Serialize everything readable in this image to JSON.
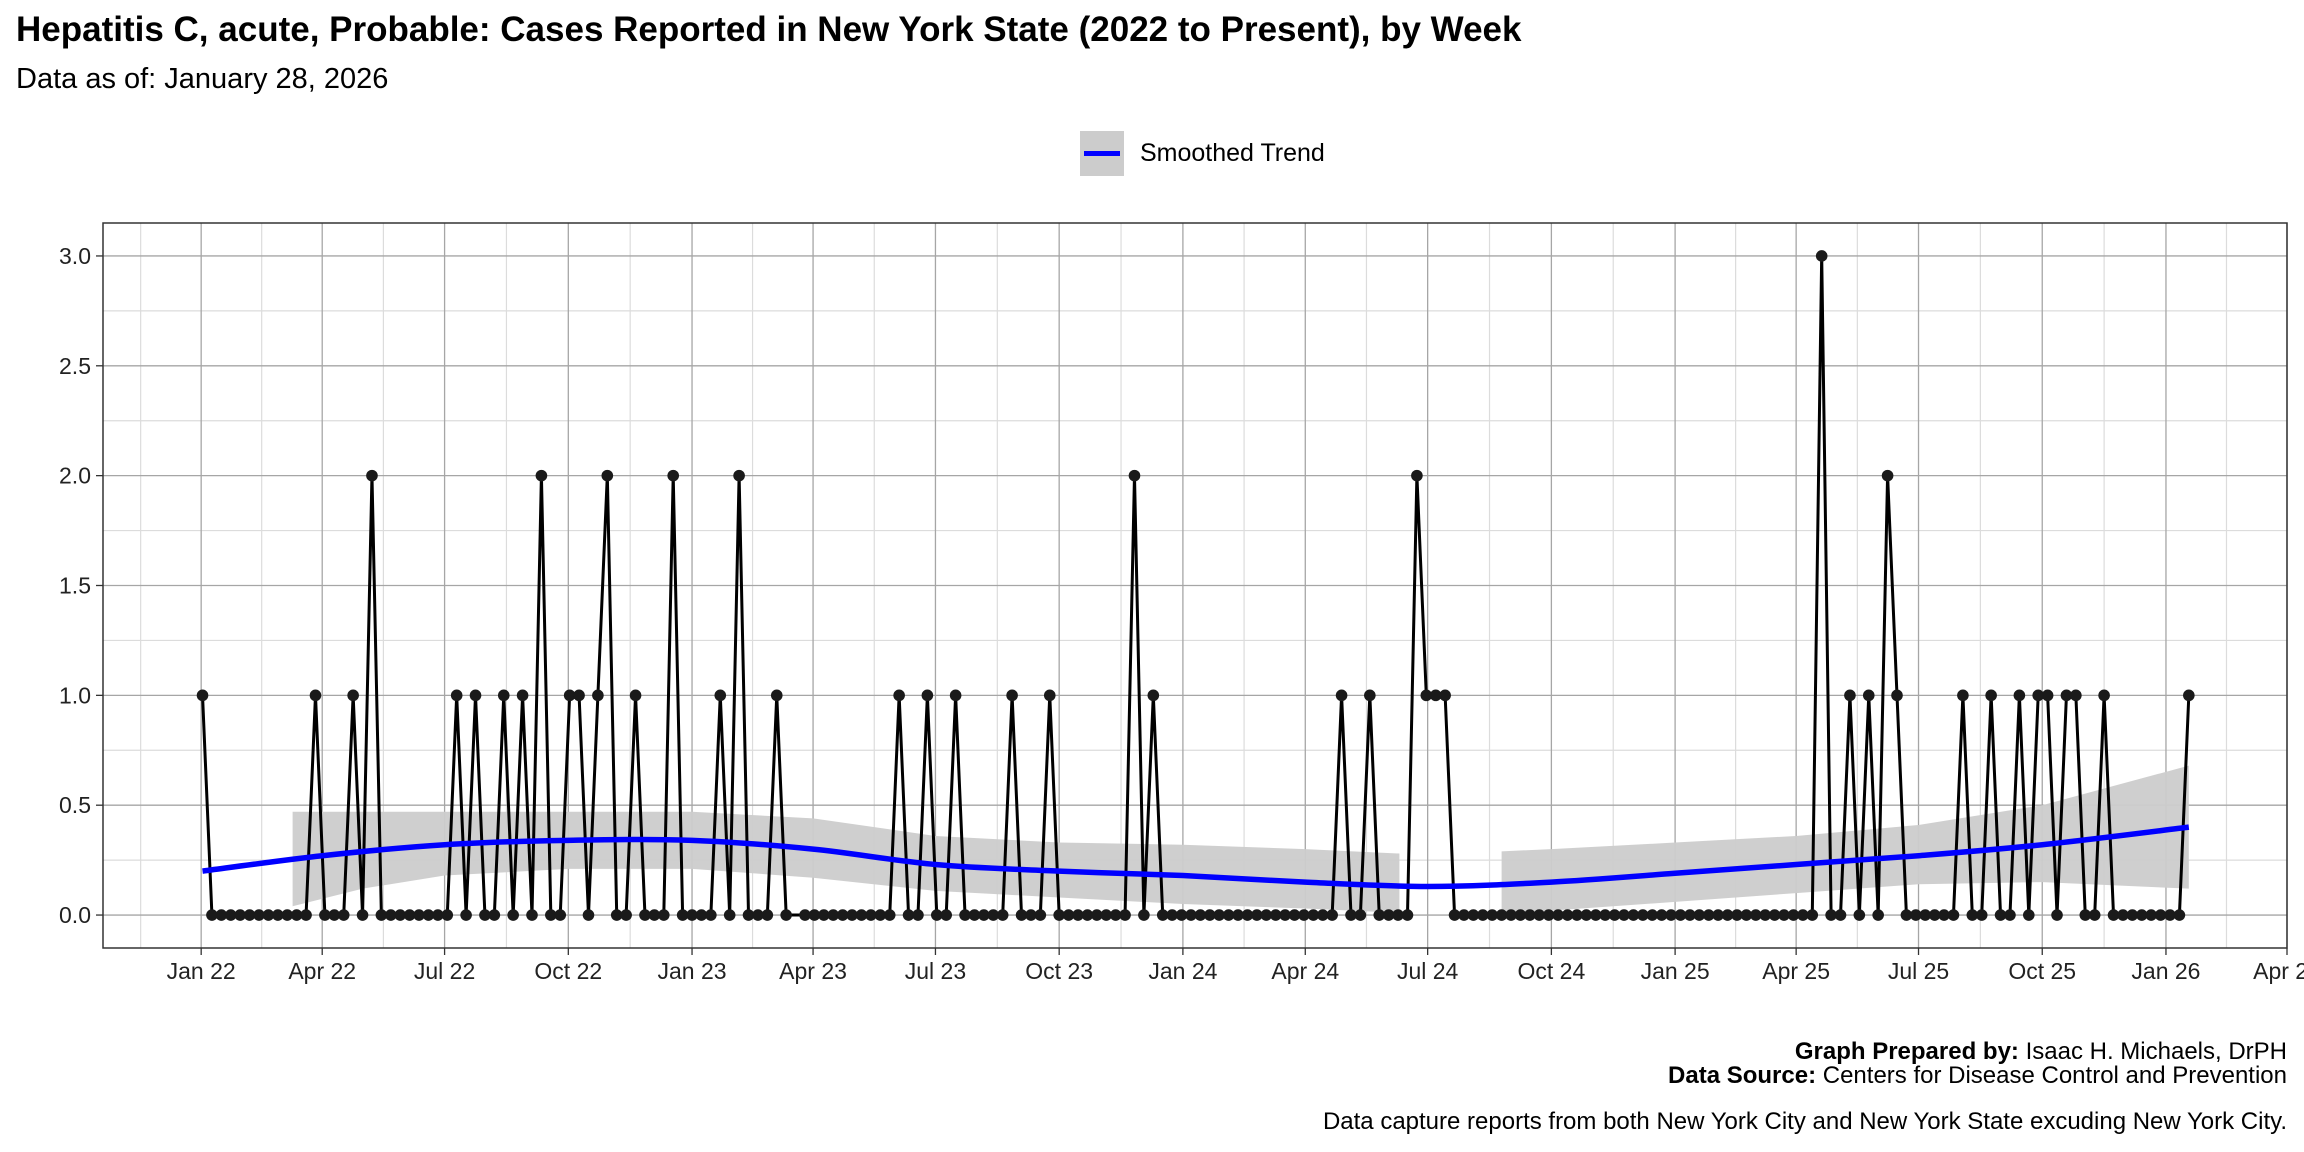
{
  "title": "Hepatitis C, acute, Probable: Cases Reported in New York State (2022 to Present), by Week",
  "subtitle": "Data as of: January 28, 2026",
  "legend": {
    "label": "Smoothed Trend",
    "color": "#0000ff",
    "ribbon_color": "#cccccc"
  },
  "footer": {
    "prepared_label": "Graph Prepared by:",
    "prepared_value": "Isaac H. Michaels, DrPH",
    "source_label": "Data Source:",
    "source_value": "Centers for Disease Control and Prevention",
    "note": "Data capture reports from both New York City and New York State excuding New York City."
  },
  "chart_data": {
    "type": "line",
    "title": "Hepatitis C, acute, Probable: Cases Reported in New York State (2022 to Present), by Week",
    "xlabel": "",
    "ylabel": "",
    "xlim": [
      "2021-10-20",
      "2026-04-01"
    ],
    "ylim": [
      -0.15,
      3.15
    ],
    "grid": true,
    "legend_position": "top",
    "x_ticks": [
      {
        "date": "2022-01-01",
        "label": "Jan 22"
      },
      {
        "date": "2022-04-01",
        "label": "Apr 22"
      },
      {
        "date": "2022-07-01",
        "label": "Jul 22"
      },
      {
        "date": "2022-10-01",
        "label": "Oct 22"
      },
      {
        "date": "2023-01-01",
        "label": "Jan 23"
      },
      {
        "date": "2023-04-01",
        "label": "Apr 23"
      },
      {
        "date": "2023-07-01",
        "label": "Jul 23"
      },
      {
        "date": "2023-10-01",
        "label": "Oct 23"
      },
      {
        "date": "2024-01-01",
        "label": "Jan 24"
      },
      {
        "date": "2024-04-01",
        "label": "Apr 24"
      },
      {
        "date": "2024-07-01",
        "label": "Jul 24"
      },
      {
        "date": "2024-10-01",
        "label": "Oct 24"
      },
      {
        "date": "2025-01-01",
        "label": "Jan 25"
      },
      {
        "date": "2025-04-01",
        "label": "Apr 25"
      },
      {
        "date": "2025-07-01",
        "label": "Jul 25"
      },
      {
        "date": "2025-10-01",
        "label": "Oct 25"
      },
      {
        "date": "2026-01-01",
        "label": "Jan 26"
      },
      {
        "date": "2026-04-01",
        "label": "Apr 26"
      }
    ],
    "y_ticks": [
      {
        "value": 0,
        "label": "0.0"
      },
      {
        "value": 0.5,
        "label": "0.5"
      },
      {
        "value": 1,
        "label": "1.0"
      },
      {
        "value": 1.5,
        "label": "1.5"
      },
      {
        "value": 2,
        "label": "2.0"
      },
      {
        "value": 2.5,
        "label": "2.5"
      },
      {
        "value": 3,
        "label": "3.0"
      }
    ],
    "weekly_series": {
      "name": "Weekly cases",
      "start_date": "2022-01-02",
      "interval_days": 7,
      "values": [
        1,
        0,
        0,
        0,
        0,
        0,
        0,
        0,
        0,
        0,
        0,
        0,
        1,
        0,
        0,
        0,
        1,
        0,
        2,
        0,
        0,
        0,
        0,
        0,
        0,
        0,
        0,
        1,
        0,
        1,
        0,
        0,
        1,
        0,
        1,
        0,
        2,
        0,
        0,
        1,
        1,
        0,
        1,
        2,
        0,
        0,
        1,
        0,
        0,
        0,
        2,
        0,
        0,
        0,
        0,
        1,
        0,
        2,
        0,
        0,
        0,
        1,
        0,
        null,
        0,
        0,
        0,
        0,
        0,
        0,
        0,
        0,
        0,
        0,
        1,
        0,
        0,
        1,
        0,
        0,
        1,
        0,
        0,
        0,
        0,
        0,
        1,
        0,
        0,
        0,
        1,
        0,
        0,
        0,
        0,
        0,
        0,
        0,
        0,
        2,
        0,
        1,
        0,
        0,
        0,
        0,
        0,
        0,
        0,
        0,
        0,
        0,
        0,
        0,
        0,
        0,
        0,
        0,
        0,
        0,
        0,
        1,
        0,
        0,
        1,
        0,
        0,
        0,
        0,
        2,
        1,
        1,
        1,
        0,
        0,
        0,
        0,
        0,
        0,
        0,
        0,
        0,
        0,
        0,
        0,
        0,
        0,
        0,
        0,
        0,
        0,
        0,
        0,
        0,
        0,
        0,
        0,
        0,
        0,
        0,
        0,
        0,
        0,
        0,
        0,
        0,
        0,
        0,
        0,
        0,
        0,
        0,
        3,
        0,
        0,
        1,
        0,
        1,
        0,
        2,
        1,
        0,
        0,
        0,
        0,
        0,
        0,
        1,
        0,
        0,
        1,
        0,
        0,
        1,
        0,
        1,
        1,
        0,
        1,
        1,
        0,
        0,
        1,
        0,
        0,
        0,
        0,
        0,
        0,
        0,
        0,
        1
      ]
    },
    "trend": {
      "name": "Smoothed Trend",
      "points": [
        [
          "2022-01-02",
          0.2
        ],
        [
          "2022-04-01",
          0.27
        ],
        [
          "2022-07-01",
          0.32
        ],
        [
          "2022-10-01",
          0.34
        ],
        [
          "2023-01-01",
          0.34
        ],
        [
          "2023-04-01",
          0.3
        ],
        [
          "2023-07-01",
          0.23
        ],
        [
          "2023-10-01",
          0.2
        ],
        [
          "2024-01-01",
          0.18
        ],
        [
          "2024-04-01",
          0.15
        ],
        [
          "2024-07-01",
          0.13
        ],
        [
          "2024-10-01",
          0.15
        ],
        [
          "2025-01-01",
          0.19
        ],
        [
          "2025-04-01",
          0.23
        ],
        [
          "2025-07-01",
          0.27
        ],
        [
          "2025-10-01",
          0.32
        ],
        [
          "2026-01-18",
          0.4
        ]
      ],
      "ribbon_segments": [
        [
          [
            "2022-03-10",
            0.04,
            0.47
          ],
          [
            "2022-05-01",
            0.12,
            0.47
          ],
          [
            "2022-07-01",
            0.18,
            0.47
          ],
          [
            "2022-10-01",
            0.21,
            0.47
          ],
          [
            "2023-01-01",
            0.21,
            0.47
          ],
          [
            "2023-04-01",
            0.17,
            0.44
          ],
          [
            "2023-07-01",
            0.11,
            0.36
          ],
          [
            "2023-10-01",
            0.08,
            0.33
          ],
          [
            "2024-01-01",
            0.05,
            0.32
          ],
          [
            "2024-04-01",
            0.03,
            0.3
          ],
          [
            "2024-06-10",
            0.01,
            0.28
          ]
        ],
        [
          [
            "2024-08-25",
            0.01,
            0.29
          ],
          [
            "2024-10-01",
            0.02,
            0.3
          ],
          [
            "2025-01-01",
            0.06,
            0.33
          ],
          [
            "2025-04-01",
            0.1,
            0.36
          ],
          [
            "2025-07-01",
            0.14,
            0.41
          ],
          [
            "2025-10-01",
            0.15,
            0.5
          ],
          [
            "2026-01-18",
            0.12,
            0.68
          ]
        ]
      ]
    }
  }
}
